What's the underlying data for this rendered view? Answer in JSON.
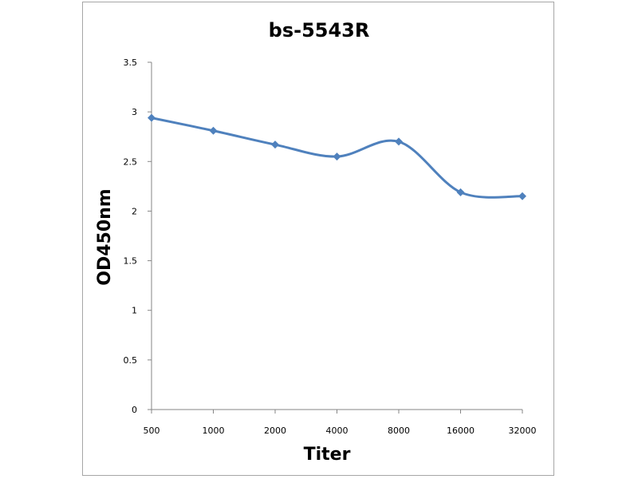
{
  "chart_data": {
    "type": "line",
    "title": "bs-5543R",
    "xlabel": "Titer",
    "ylabel": "OD450nm",
    "categories": [
      "500",
      "1000",
      "2000",
      "4000",
      "8000",
      "16000",
      "32000"
    ],
    "series": [
      {
        "values": [
          2.94,
          2.81,
          2.67,
          2.55,
          2.7,
          2.19,
          2.15
        ]
      }
    ],
    "ylim": [
      0,
      3.5
    ],
    "yticks": [
      "0",
      "0.5",
      "1",
      "1.5",
      "2",
      "2.5",
      "3",
      "3.5"
    ],
    "grid": false,
    "legend": "none",
    "colors": {
      "series": "#4f81bd",
      "axis": "#868686",
      "frame": "#a6a6a6"
    }
  }
}
